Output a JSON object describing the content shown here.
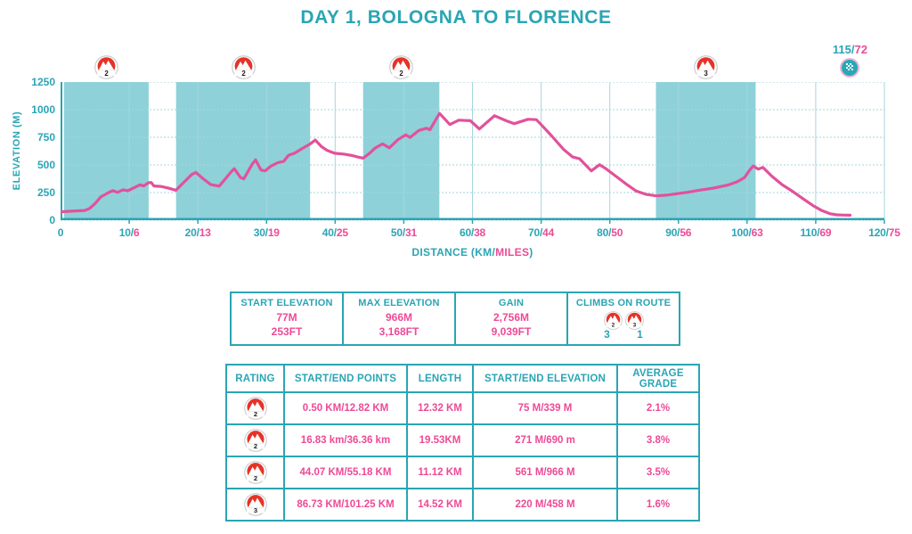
{
  "page": {
    "title": "DAY 1, BOLOGNA TO FLORENCE"
  },
  "colors": {
    "teal": "#2aa5b4",
    "pink": "#ee4a95",
    "band": "#8ed1d9",
    "grid": "#a6d6de",
    "line": "#e2519b",
    "icon_red": "#e63228",
    "flag_circle": "#2aa7b5",
    "flag_ring": "#e9b7d4"
  },
  "chart_data": {
    "type": "line",
    "title": "DAY 1, BOLOGNA TO FLORENCE",
    "ylabel": "ELEVATION (M)",
    "xlabel_part_teal": "DISTANCE (KM/",
    "xlabel_part_pink": "MILES",
    "xlabel_part_close": ")",
    "xlim": [
      0,
      120
    ],
    "ylim": [
      0,
      1250
    ],
    "grid": true,
    "yticks": [
      0,
      250,
      500,
      750,
      1000,
      1250
    ],
    "xticks": [
      {
        "km": "0",
        "miles": ""
      },
      {
        "km": "10/",
        "miles": "6"
      },
      {
        "km": "20/",
        "miles": "13"
      },
      {
        "km": "30/",
        "miles": "19"
      },
      {
        "km": "40/",
        "miles": "25"
      },
      {
        "km": "50/",
        "miles": "31"
      },
      {
        "km": "60/",
        "miles": "38"
      },
      {
        "km": "70/",
        "miles": "44"
      },
      {
        "km": "80/",
        "miles": "50"
      },
      {
        "km": "90/",
        "miles": "56"
      },
      {
        "km": "100/",
        "miles": "63"
      },
      {
        "km": "110/",
        "miles": "69"
      },
      {
        "km": "120/",
        "miles": "75"
      }
    ],
    "climb_bands": [
      {
        "rating": "2",
        "start_km": 0.5,
        "end_km": 12.82
      },
      {
        "rating": "2",
        "start_km": 16.83,
        "end_km": 36.36
      },
      {
        "rating": "2",
        "start_km": 44.07,
        "end_km": 55.18
      },
      {
        "rating": "3",
        "start_km": 86.73,
        "end_km": 101.25
      }
    ],
    "finish": {
      "km": 115,
      "label_km": "115/",
      "label_miles": "72"
    },
    "profile_km_m": [
      [
        0,
        77
      ],
      [
        1,
        80
      ],
      [
        2.5,
        85
      ],
      [
        3.5,
        88
      ],
      [
        4.2,
        105
      ],
      [
        5,
        148
      ],
      [
        5.9,
        213
      ],
      [
        7,
        250
      ],
      [
        7.6,
        268
      ],
      [
        8.3,
        252
      ],
      [
        9.1,
        275
      ],
      [
        9.8,
        266
      ],
      [
        11.1,
        306
      ],
      [
        11.6,
        320
      ],
      [
        12.1,
        310
      ],
      [
        12.8,
        339
      ],
      [
        13.2,
        341
      ],
      [
        13.6,
        310
      ],
      [
        14.6,
        306
      ],
      [
        15.6,
        292
      ],
      [
        16.8,
        271
      ],
      [
        18,
        346
      ],
      [
        19.1,
        413
      ],
      [
        19.7,
        432
      ],
      [
        20.7,
        378
      ],
      [
        21.9,
        322
      ],
      [
        23.1,
        308
      ],
      [
        24.9,
        440
      ],
      [
        25.3,
        466
      ],
      [
        26.2,
        386
      ],
      [
        26.7,
        374
      ],
      [
        27.9,
        506
      ],
      [
        28.4,
        546
      ],
      [
        29.2,
        453
      ],
      [
        29.8,
        446
      ],
      [
        30.6,
        488
      ],
      [
        31.6,
        519
      ],
      [
        32.5,
        532
      ],
      [
        33.2,
        586
      ],
      [
        34.1,
        607
      ],
      [
        35.1,
        645
      ],
      [
        36.4,
        692
      ],
      [
        37.1,
        725
      ],
      [
        38,
        666
      ],
      [
        38.8,
        632
      ],
      [
        39.9,
        606
      ],
      [
        41.2,
        598
      ],
      [
        42.5,
        585
      ],
      [
        43.4,
        570
      ],
      [
        44.1,
        561
      ],
      [
        45.1,
        610
      ],
      [
        45.8,
        652
      ],
      [
        46.9,
        690
      ],
      [
        47.9,
        655
      ],
      [
        49.2,
        732
      ],
      [
        50.3,
        772
      ],
      [
        50.9,
        748
      ],
      [
        52.2,
        812
      ],
      [
        53.3,
        832
      ],
      [
        53.8,
        818
      ],
      [
        55.2,
        966
      ],
      [
        56.7,
        865
      ],
      [
        58,
        905
      ],
      [
        59.7,
        900
      ],
      [
        61,
        825
      ],
      [
        63.2,
        945
      ],
      [
        65.1,
        895
      ],
      [
        66.1,
        873
      ],
      [
        68.1,
        913
      ],
      [
        69.3,
        910
      ],
      [
        70.3,
        845
      ],
      [
        71.6,
        758
      ],
      [
        73.3,
        639
      ],
      [
        74.6,
        572
      ],
      [
        75.6,
        556
      ],
      [
        76.5,
        498
      ],
      [
        77.3,
        446
      ],
      [
        78.5,
        502
      ],
      [
        79.4,
        468
      ],
      [
        81.1,
        388
      ],
      [
        82.6,
        318
      ],
      [
        83.8,
        265
      ],
      [
        85.2,
        235
      ],
      [
        86.8,
        220
      ],
      [
        88.2,
        227
      ],
      [
        89.6,
        238
      ],
      [
        91.2,
        252
      ],
      [
        93.1,
        272
      ],
      [
        95.1,
        290
      ],
      [
        97.2,
        318
      ],
      [
        98.6,
        348
      ],
      [
        99.6,
        385
      ],
      [
        100.4,
        455
      ],
      [
        100.9,
        490
      ],
      [
        101.6,
        462
      ],
      [
        102.3,
        478
      ],
      [
        103.6,
        398
      ],
      [
        105.1,
        322
      ],
      [
        106.6,
        262
      ],
      [
        108.1,
        196
      ],
      [
        109.6,
        132
      ],
      [
        110.9,
        86
      ],
      [
        112.1,
        58
      ],
      [
        113.1,
        48
      ],
      [
        114.2,
        46
      ],
      [
        115,
        45
      ]
    ]
  },
  "summary_table": {
    "cells": [
      {
        "label": "START ELEVATION",
        "metric": "77M",
        "imperial": "253FT"
      },
      {
        "label": "MAX ELEVATION",
        "metric": "966M",
        "imperial": "3,168FT"
      },
      {
        "label": "GAIN",
        "metric": "2,756M",
        "imperial": "9,039FT"
      }
    ],
    "climbs": {
      "label": "CLIMBS ON ROUTE",
      "items": [
        {
          "rating": "2",
          "count": "3"
        },
        {
          "rating": "3",
          "count": "1"
        }
      ]
    }
  },
  "climbs_table": {
    "headers": [
      "RATING",
      "START/END POINTS",
      "LENGTH",
      "START/END ELEVATION",
      "AVERAGE GRADE"
    ],
    "rows": [
      {
        "rating": "2",
        "points": "0.50 KM/12.82 KM",
        "length": "12.32 KM",
        "elevation": "75 M/339 M",
        "grade": "2.1%"
      },
      {
        "rating": "2",
        "points": "16.83 km/36.36 km",
        "length": "19.53KM",
        "elevation": "271 M/690 m",
        "grade": "3.8%"
      },
      {
        "rating": "2",
        "points": "44.07 KM/55.18 KM",
        "length": "11.12 KM",
        "elevation": "561 M/966 M",
        "grade": "3.5%"
      },
      {
        "rating": "3",
        "points": "86.73 KM/101.25 KM",
        "length": "14.52 KM",
        "elevation": "220 M/458 M",
        "grade": "1.6%"
      }
    ]
  }
}
